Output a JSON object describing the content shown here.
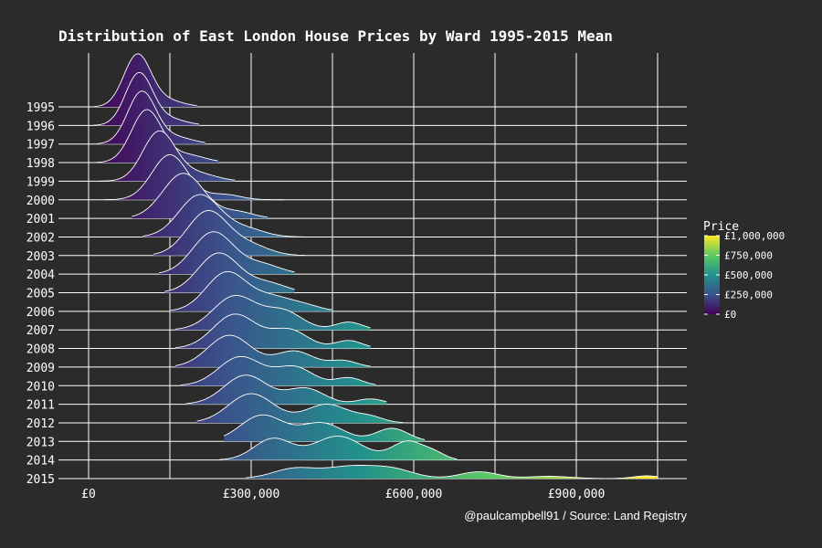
{
  "chart_data": {
    "type": "ridgeline",
    "title": "Distribution of East London House Prices by Ward 1995-2015 Mean",
    "caption": "@paulcampbell91 / Source: Land Registry",
    "xlim": [
      0,
      1120000
    ],
    "x_ticks": [
      0,
      300000,
      600000,
      900000
    ],
    "x_tick_labels": [
      "£0",
      "£300,000",
      "£600,000",
      "£900,000"
    ],
    "grid": true,
    "legend": {
      "title": "Price",
      "placement": "right",
      "color_scale": "viridis",
      "ticks": [
        {
          "value": 1000000,
          "label": "£1,000,000"
        },
        {
          "value": 750000,
          "label": "£750,000"
        },
        {
          "value": 500000,
          "label": "£500,000"
        },
        {
          "value": 250000,
          "label": "£250,000"
        },
        {
          "value": 0,
          "label": "£0"
        }
      ],
      "colors": [
        "#440154",
        "#3b528b",
        "#21918c",
        "#5ec962",
        "#fde725"
      ]
    },
    "series": [
      {
        "year": "1995",
        "peaks": [
          {
            "mu": 90000,
            "sd": 25000,
            "h": 1.0
          },
          {
            "mu": 145000,
            "sd": 30000,
            "h": 0.12
          }
        ],
        "range": [
          10000,
          200000
        ]
      },
      {
        "year": "1996",
        "peaks": [
          {
            "mu": 93000,
            "sd": 25000,
            "h": 1.0
          },
          {
            "mu": 150000,
            "sd": 30000,
            "h": 0.12
          }
        ],
        "range": [
          10000,
          205000
        ]
      },
      {
        "year": "1997",
        "peaks": [
          {
            "mu": 98000,
            "sd": 26000,
            "h": 1.0
          },
          {
            "mu": 160000,
            "sd": 32000,
            "h": 0.13
          }
        ],
        "range": [
          15000,
          215000
        ]
      },
      {
        "year": "1998",
        "peaks": [
          {
            "mu": 107000,
            "sd": 28000,
            "h": 1.0
          },
          {
            "mu": 180000,
            "sd": 34000,
            "h": 0.15
          }
        ],
        "range": [
          15000,
          240000
        ]
      },
      {
        "year": "1999",
        "peaks": [
          {
            "mu": 130000,
            "sd": 30000,
            "h": 0.95
          },
          {
            "mu": 200000,
            "sd": 35000,
            "h": 0.15
          }
        ],
        "range": [
          20000,
          270000
        ]
      },
      {
        "year": "2000",
        "peaks": [
          {
            "mu": 150000,
            "sd": 33000,
            "h": 0.85
          },
          {
            "mu": 250000,
            "sd": 30000,
            "h": 0.1
          }
        ],
        "range": [
          30000,
          360000
        ]
      },
      {
        "year": "2001",
        "peaks": [
          {
            "mu": 175000,
            "sd": 38000,
            "h": 0.85
          },
          {
            "mu": 275000,
            "sd": 30000,
            "h": 0.12
          }
        ],
        "range": [
          80000,
          330000
        ]
      },
      {
        "year": "2002",
        "peaks": [
          {
            "mu": 205000,
            "sd": 38000,
            "h": 0.8
          },
          {
            "mu": 290000,
            "sd": 35000,
            "h": 0.15
          }
        ],
        "range": [
          100000,
          400000
        ]
      },
      {
        "year": "2003",
        "peaks": [
          {
            "mu": 220000,
            "sd": 38000,
            "h": 0.85
          },
          {
            "mu": 300000,
            "sd": 35000,
            "h": 0.18
          }
        ],
        "range": [
          120000,
          400000
        ]
      },
      {
        "year": "2004",
        "peaks": [
          {
            "mu": 230000,
            "sd": 38000,
            "h": 0.8
          },
          {
            "mu": 320000,
            "sd": 35000,
            "h": 0.18
          }
        ],
        "range": [
          130000,
          380000
        ]
      },
      {
        "year": "2005",
        "peaks": [
          {
            "mu": 240000,
            "sd": 38000,
            "h": 0.75
          },
          {
            "mu": 330000,
            "sd": 35000,
            "h": 0.18
          }
        ],
        "range": [
          140000,
          380000
        ]
      },
      {
        "year": "2006",
        "peaks": [
          {
            "mu": 255000,
            "sd": 38000,
            "h": 0.75
          },
          {
            "mu": 340000,
            "sd": 35000,
            "h": 0.25
          },
          {
            "mu": 400000,
            "sd": 30000,
            "h": 0.1
          }
        ],
        "range": [
          150000,
          450000
        ]
      },
      {
        "year": "2007",
        "peaks": [
          {
            "mu": 270000,
            "sd": 40000,
            "h": 0.65
          },
          {
            "mu": 360000,
            "sd": 35000,
            "h": 0.35
          },
          {
            "mu": 480000,
            "sd": 25000,
            "h": 0.15
          }
        ],
        "range": [
          160000,
          520000
        ]
      },
      {
        "year": "2008",
        "peaks": [
          {
            "mu": 270000,
            "sd": 40000,
            "h": 0.65
          },
          {
            "mu": 370000,
            "sd": 35000,
            "h": 0.35
          },
          {
            "mu": 480000,
            "sd": 25000,
            "h": 0.15
          }
        ],
        "range": [
          160000,
          520000
        ]
      },
      {
        "year": "2009",
        "peaks": [
          {
            "mu": 260000,
            "sd": 40000,
            "h": 0.6
          },
          {
            "mu": 380000,
            "sd": 35000,
            "h": 0.3
          },
          {
            "mu": 470000,
            "sd": 25000,
            "h": 0.12
          }
        ],
        "range": [
          160000,
          520000
        ]
      },
      {
        "year": "2010",
        "peaks": [
          {
            "mu": 280000,
            "sd": 40000,
            "h": 0.55
          },
          {
            "mu": 380000,
            "sd": 35000,
            "h": 0.35
          },
          {
            "mu": 480000,
            "sd": 25000,
            "h": 0.15
          }
        ],
        "range": [
          170000,
          530000
        ]
      },
      {
        "year": "2011",
        "peaks": [
          {
            "mu": 290000,
            "sd": 40000,
            "h": 0.55
          },
          {
            "mu": 400000,
            "sd": 35000,
            "h": 0.3
          },
          {
            "mu": 520000,
            "sd": 25000,
            "h": 0.1
          }
        ],
        "range": [
          180000,
          550000
        ]
      },
      {
        "year": "2012",
        "peaks": [
          {
            "mu": 300000,
            "sd": 42000,
            "h": 0.55
          },
          {
            "mu": 440000,
            "sd": 40000,
            "h": 0.35
          },
          {
            "mu": 520000,
            "sd": 25000,
            "h": 0.1
          }
        ],
        "range": [
          200000,
          580000
        ]
      },
      {
        "year": "2013",
        "peaks": [
          {
            "mu": 320000,
            "sd": 40000,
            "h": 0.5
          },
          {
            "mu": 430000,
            "sd": 40000,
            "h": 0.35
          },
          {
            "mu": 560000,
            "sd": 30000,
            "h": 0.25
          }
        ],
        "range": [
          250000,
          620000
        ]
      },
      {
        "year": "2014",
        "peaks": [
          {
            "mu": 340000,
            "sd": 35000,
            "h": 0.4
          },
          {
            "mu": 460000,
            "sd": 45000,
            "h": 0.45
          },
          {
            "mu": 590000,
            "sd": 30000,
            "h": 0.35
          },
          {
            "mu": 640000,
            "sd": 20000,
            "h": 0.1
          }
        ],
        "range": [
          240000,
          680000
        ]
      },
      {
        "year": "2015",
        "peaks": [
          {
            "mu": 380000,
            "sd": 40000,
            "h": 0.22
          },
          {
            "mu": 480000,
            "sd": 45000,
            "h": 0.25
          },
          {
            "mu": 560000,
            "sd": 40000,
            "h": 0.2
          },
          {
            "mu": 720000,
            "sd": 35000,
            "h": 0.15
          },
          {
            "mu": 850000,
            "sd": 40000,
            "h": 0.05
          },
          {
            "mu": 1030000,
            "sd": 25000,
            "h": 0.06
          }
        ],
        "range": [
          290000,
          1050000
        ]
      }
    ]
  }
}
